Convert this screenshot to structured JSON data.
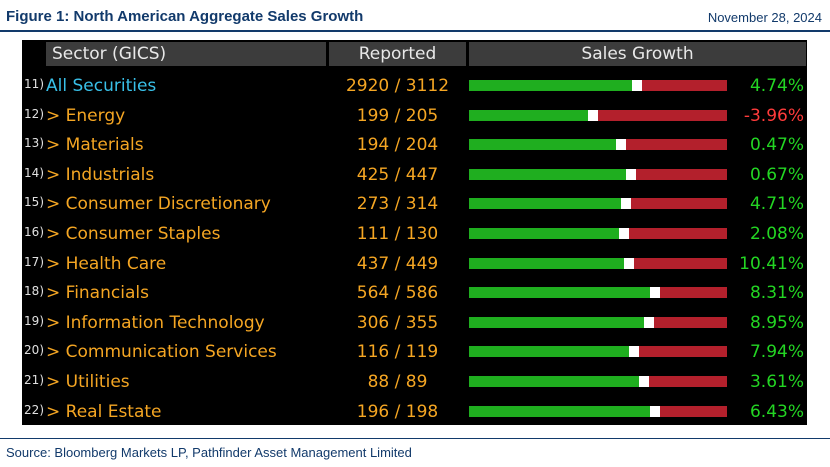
{
  "title": "Figure 1: North American Aggregate Sales Growth",
  "date": "November 28, 2024",
  "headers": {
    "sector": "Sector (GICS)",
    "reported": "Reported",
    "growth": "Sales Growth"
  },
  "rows": [
    {
      "num": "11)",
      "name": "All Securities",
      "reported": "2920 / 3112",
      "growth": "4.74%",
      "value": 4.74,
      "bar_fraction": 0.63,
      "all": true
    },
    {
      "num": "12)",
      "name": "> Energy",
      "reported": "199 / 205",
      "growth": "-3.96%",
      "value": -3.96,
      "bar_fraction": 0.46
    },
    {
      "num": "13)",
      "name": "> Materials",
      "reported": "194 / 204",
      "growth": "0.47%",
      "value": 0.47,
      "bar_fraction": 0.57
    },
    {
      "num": "14)",
      "name": "> Industrials",
      "reported": "425 / 447",
      "growth": "0.67%",
      "value": 0.67,
      "bar_fraction": 0.61
    },
    {
      "num": "15)",
      "name": "> Consumer Discretionary",
      "reported": "273 / 314",
      "growth": "4.71%",
      "value": 4.71,
      "bar_fraction": 0.59
    },
    {
      "num": "16)",
      "name": "> Consumer Staples",
      "reported": "111 / 130",
      "growth": "2.08%",
      "value": 2.08,
      "bar_fraction": 0.58
    },
    {
      "num": "17)",
      "name": "> Health Care",
      "reported": "437 / 449",
      "growth": "10.41%",
      "value": 10.41,
      "bar_fraction": 0.6
    },
    {
      "num": "18)",
      "name": "> Financials",
      "reported": "564 / 586",
      "growth": "8.31%",
      "value": 8.31,
      "bar_fraction": 0.7
    },
    {
      "num": "19)",
      "name": "> Information Technology",
      "reported": "306 / 355",
      "growth": "8.95%",
      "value": 8.95,
      "bar_fraction": 0.68
    },
    {
      "num": "20)",
      "name": "> Communication Services",
      "reported": "116 / 119",
      "growth": "7.94%",
      "value": 7.94,
      "bar_fraction": 0.62
    },
    {
      "num": "21)",
      "name": "> Utilities",
      "reported": "88 / 89",
      "growth": "3.61%",
      "value": 3.61,
      "bar_fraction": 0.66
    },
    {
      "num": "22)",
      "name": "> Real Estate",
      "reported": "196 / 198",
      "growth": "6.43%",
      "value": 6.43,
      "bar_fraction": 0.7
    }
  ],
  "source": "Source: Bloomberg Markets LP, Pathfinder Asset Management Limited",
  "colors": {
    "positive": "#23d623",
    "negative": "#ff3b3b",
    "bar_green": "#1fae1f",
    "bar_red": "#b3202c"
  }
}
